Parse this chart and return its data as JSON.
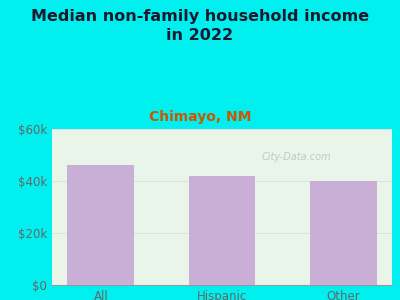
{
  "title": "Median non-family household income\nin 2022",
  "subtitle": "Chimayo, NM",
  "categories": [
    "All",
    "Hispanic",
    "Other"
  ],
  "values": [
    46000,
    42000,
    40000
  ],
  "bar_color": "#c9aed6",
  "background_outer": "#00f0f0",
  "background_plot_top": "#e8f5e8",
  "background_plot_bottom": "#f5fff5",
  "title_color": "#1a1a2e",
  "subtitle_color": "#cc5500",
  "tick_label_color": "#666666",
  "axis_color": "#999999",
  "watermark": "City-Data.com",
  "ylim": [
    0,
    60000
  ],
  "yticks": [
    0,
    20000,
    40000,
    60000
  ],
  "title_fontsize": 11.5,
  "subtitle_fontsize": 10,
  "tick_fontsize": 8.5
}
